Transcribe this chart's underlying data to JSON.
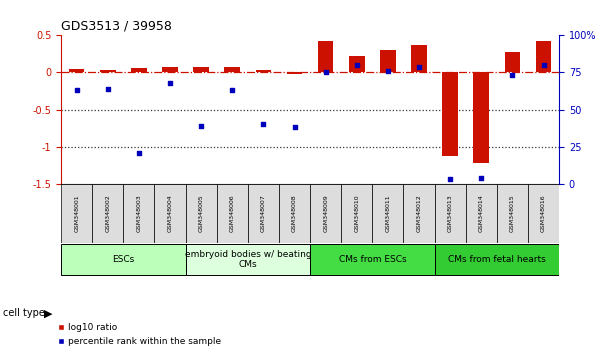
{
  "title": "GDS3513 / 39958",
  "samples": [
    "GSM348001",
    "GSM348002",
    "GSM348003",
    "GSM348004",
    "GSM348005",
    "GSM348006",
    "GSM348007",
    "GSM348008",
    "GSM348009",
    "GSM348010",
    "GSM348011",
    "GSM348012",
    "GSM348013",
    "GSM348014",
    "GSM348015",
    "GSM348016"
  ],
  "log10_ratio": [
    0.05,
    0.04,
    0.06,
    0.07,
    0.07,
    0.07,
    0.04,
    -0.02,
    0.42,
    0.22,
    0.3,
    0.37,
    -1.12,
    -1.22,
    0.27,
    0.43
  ],
  "percentile_rank": [
    63,
    64,
    21,
    68,
    39,
    63,
    40,
    38,
    75,
    80,
    76,
    79,
    3,
    4,
    73,
    80
  ],
  "ylim_left": [
    -1.5,
    0.5
  ],
  "ylim_right": [
    0,
    100
  ],
  "cell_type_groups": [
    {
      "label": "ESCs",
      "start": 0,
      "end": 3,
      "color": "#bbffbb"
    },
    {
      "label": "embryoid bodies w/ beating\nCMs",
      "start": 4,
      "end": 7,
      "color": "#ddffdd"
    },
    {
      "label": "CMs from ESCs",
      "start": 8,
      "end": 11,
      "color": "#44dd44"
    },
    {
      "label": "CMs from fetal hearts",
      "start": 12,
      "end": 15,
      "color": "#33cc33"
    }
  ],
  "bar_color": "#cc1100",
  "dot_color": "#0000bb",
  "hline_color": "#cc1100",
  "left_axis_color": "#cc1100",
  "right_axis_color": "#0000bb",
  "dotted_line_color": "#333333",
  "bg_color": "#ffffff",
  "cell_type_label": "cell type"
}
